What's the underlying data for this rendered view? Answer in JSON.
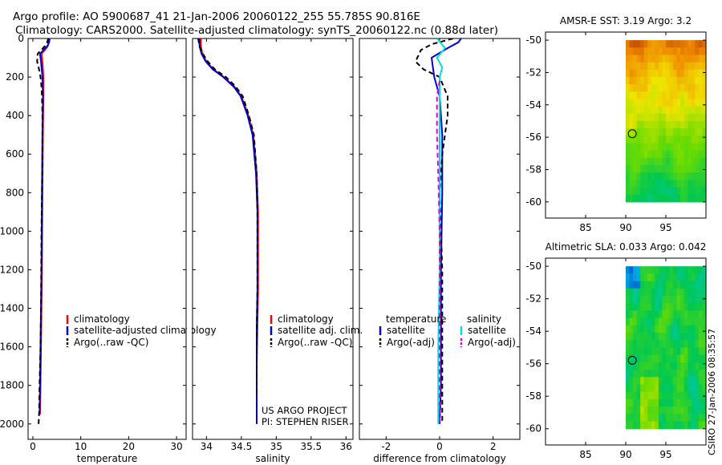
{
  "header": {
    "line1": "Argo profile: AO 5900687_41 21-Jan-2006 20060122_255 55.785S 90.816E",
    "line2": "Climatology: CARS2000. Satellite-adjusted climatology: synTS_20060122.nc (0.88d later)"
  },
  "colors": {
    "clim": "#ff0000",
    "sat": "#0000dd",
    "argo": "#000000",
    "sat_sal": "#00dddd",
    "argo_sal": "#dd00dd"
  },
  "chart_data": [
    {
      "type": "line",
      "name": "temperature-profile",
      "xlabel": "temperature",
      "xlim": [
        -1,
        32
      ],
      "ylim": [
        2080,
        0
      ],
      "xticks": [
        0,
        10,
        20,
        30
      ],
      "yticks": [
        0,
        200,
        400,
        600,
        800,
        1000,
        1200,
        1400,
        1600,
        1800,
        2000
      ],
      "legend": [
        "climatology",
        "satellite-adjusted climatology",
        "Argo(..raw -QC)"
      ],
      "series": [
        {
          "name": "climatology",
          "color": "clim",
          "dash": false,
          "x": [
            3.3,
            3.3,
            3.1,
            2.5,
            1.8,
            2.0,
            2.2,
            2.2,
            2.1,
            2.0,
            1.95,
            1.9,
            1.8,
            1.7,
            1.6,
            1.5
          ],
          "y": [
            0,
            20,
            40,
            60,
            80,
            120,
            200,
            300,
            500,
            800,
            1000,
            1200,
            1400,
            1600,
            1800,
            1950
          ]
        },
        {
          "name": "satellite-adjusted climatology",
          "color": "sat",
          "dash": false,
          "x": [
            3.5,
            3.4,
            3.0,
            2.2,
            1.5,
            1.7,
            2.0,
            2.1,
            2.0,
            1.9,
            1.85,
            1.8,
            1.7,
            1.6,
            1.5,
            1.4
          ],
          "y": [
            0,
            20,
            40,
            60,
            80,
            120,
            200,
            300,
            500,
            800,
            1000,
            1200,
            1400,
            1600,
            1800,
            1950
          ]
        },
        {
          "name": "Argo(..raw -QC)",
          "color": "argo",
          "dash": true,
          "x": [
            3.2,
            3.0,
            2.5,
            1.0,
            0.9,
            1.3,
            1.6,
            1.8,
            1.9,
            2.0,
            2.0,
            1.8,
            1.7,
            1.6,
            1.4,
            1.3,
            1.2
          ],
          "y": [
            0,
            20,
            40,
            80,
            120,
            160,
            200,
            250,
            300,
            400,
            600,
            1000,
            1400,
            1600,
            1800,
            1950,
            2000
          ]
        }
      ]
    },
    {
      "type": "line",
      "name": "salinity-profile",
      "xlabel": "salinity",
      "xlim": [
        33.8,
        36.1
      ],
      "ylim": [
        2080,
        0
      ],
      "xticks": [
        34,
        34.5,
        35,
        35.5,
        36
      ],
      "yticks": [
        0,
        200,
        400,
        600,
        800,
        1000,
        1200,
        1400,
        1600,
        1800,
        2000
      ],
      "legend": [
        "climatology",
        "satellite adj. clim.",
        "Argo(..raw -QC)"
      ],
      "annotation": [
        "US ARGO PROJECT",
        "PI: STEPHEN RISER"
      ],
      "series": [
        {
          "name": "climatology",
          "color": "clim",
          "dash": false,
          "x": [
            33.92,
            33.92,
            33.94,
            34.0,
            34.1,
            34.25,
            34.4,
            34.5,
            34.6,
            34.67,
            34.72,
            34.74,
            34.74,
            34.74,
            34.73,
            34.72,
            34.72,
            34.72
          ],
          "y": [
            0,
            40,
            80,
            120,
            160,
            200,
            250,
            300,
            400,
            500,
            700,
            900,
            1100,
            1300,
            1500,
            1700,
            1850,
            2000
          ]
        },
        {
          "name": "satellite adj. clim.",
          "color": "sat",
          "dash": false,
          "x": [
            33.9,
            33.9,
            33.93,
            33.99,
            34.09,
            34.24,
            34.39,
            34.49,
            34.59,
            34.66,
            34.71,
            34.73,
            34.73,
            34.73,
            34.72,
            34.72,
            34.72,
            34.72
          ],
          "y": [
            0,
            40,
            80,
            120,
            160,
            200,
            250,
            300,
            400,
            500,
            700,
            900,
            1100,
            1300,
            1500,
            1700,
            1850,
            2000
          ]
        },
        {
          "name": "Argo(..raw -QC)",
          "color": "argo",
          "dash": true,
          "x": [
            33.88,
            33.9,
            33.95,
            34.02,
            34.12,
            34.28,
            34.42,
            34.52,
            34.61,
            34.68,
            34.72,
            34.73,
            34.73,
            34.73,
            34.72,
            34.72,
            34.72
          ],
          "y": [
            0,
            40,
            80,
            120,
            160,
            200,
            250,
            300,
            400,
            500,
            700,
            900,
            1100,
            1300,
            1500,
            1700,
            1850
          ]
        }
      ]
    },
    {
      "type": "line",
      "name": "difference-profile",
      "xlabel": "difference from climatology",
      "xlim": [
        -3,
        3
      ],
      "ylim": [
        2080,
        0
      ],
      "xticks": [
        -2,
        0,
        2
      ],
      "yticks": [
        0,
        200,
        400,
        600,
        800,
        1000,
        1200,
        1400,
        1600,
        1800,
        2000
      ],
      "legend_left": [
        "temperature",
        "satellite",
        "Argo(-adj)"
      ],
      "legend_right": [
        "salinity",
        "satellite",
        "Argo(-adj)"
      ],
      "series": [
        {
          "name": "temperature satellite",
          "color": "sat",
          "dash": false,
          "x": [
            0.8,
            0.7,
            0.3,
            -0.3,
            -0.2,
            0.0,
            0.1,
            0.1,
            0.05,
            0.05,
            0.05,
            0.0
          ],
          "y": [
            0,
            20,
            50,
            100,
            200,
            300,
            500,
            800,
            1200,
            1600,
            1800,
            2000
          ]
        },
        {
          "name": "temperature Argo(-adj)",
          "color": "argo",
          "dash": true,
          "x": [
            0.5,
            -0.3,
            -0.7,
            -0.9,
            -0.6,
            0.0,
            0.3,
            0.3,
            0.1,
            0.0,
            0.1,
            0.1,
            0.1
          ],
          "y": [
            0,
            30,
            60,
            120,
            160,
            200,
            300,
            400,
            600,
            800,
            1200,
            1600,
            2000
          ]
        },
        {
          "name": "salinity satellite",
          "color": "sat_sal",
          "dash": false,
          "x": [
            -0.1,
            0.2,
            -0.1,
            0.1,
            0.0,
            0.0,
            0.0,
            0.0,
            -0.05,
            -0.05
          ],
          "y": [
            0,
            50,
            100,
            150,
            200,
            400,
            800,
            1200,
            1600,
            2000
          ]
        },
        {
          "name": "salinity Argo(-adj)",
          "color": "argo_sal",
          "dash": true,
          "x": [
            0.0,
            -0.1,
            -0.1,
            -0.05,
            0.0,
            0.0,
            0.0,
            0.0
          ],
          "y": [
            220,
            300,
            500,
            700,
            1000,
            1400,
            1800,
            2000
          ]
        }
      ]
    },
    {
      "type": "heatmap",
      "name": "sst-map",
      "title": "AMSR-E SST: 3.19 Argo: 3.2",
      "xlim": [
        80,
        100
      ],
      "ylim": [
        -61,
        -49.5
      ],
      "xticks": [
        85,
        90,
        95
      ],
      "yticks": [
        -50,
        -52,
        -54,
        -56,
        -58,
        -60
      ],
      "data_extent": {
        "lon": [
          90,
          100
        ],
        "lat": [
          -60,
          -50
        ]
      },
      "marker": {
        "lon": 90.816,
        "lat": -55.785
      }
    },
    {
      "type": "heatmap",
      "name": "sla-map",
      "title": "Altimetric SLA: 0.033 Argo: 0.042",
      "xlim": [
        80,
        100
      ],
      "ylim": [
        -61,
        -49.5
      ],
      "xticks": [
        85,
        90,
        95
      ],
      "yticks": [
        -50,
        -52,
        -54,
        -56,
        -58,
        -60
      ],
      "data_extent": {
        "lon": [
          90,
          100
        ],
        "lat": [
          -60,
          -50
        ]
      },
      "marker": {
        "lon": 90.816,
        "lat": -55.785
      }
    }
  ],
  "footer": {
    "credit": "CSIRO 27-Jan-2006 08:35:57"
  }
}
